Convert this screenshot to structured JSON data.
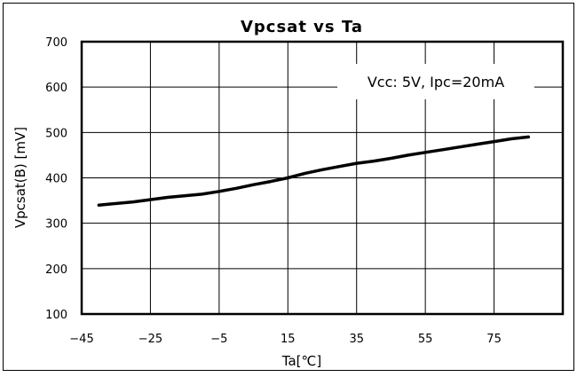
{
  "chart_data": {
    "type": "line",
    "title": "Vpcsat vs Ta",
    "xlabel": "Ta[℃]",
    "ylabel": "Vpcsat(B) [mV]",
    "xlim": [
      -45,
      95
    ],
    "ylim": [
      100,
      700
    ],
    "x_ticks": [
      -45,
      -25,
      -5,
      15,
      35,
      55,
      75
    ],
    "y_ticks": [
      100,
      200,
      300,
      400,
      500,
      600,
      700
    ],
    "grid": true,
    "annotation": "Vcc: 5V, Ipc=20mA",
    "series": [
      {
        "color": "#000000",
        "x": [
          -40,
          -30,
          -20,
          -10,
          -5,
          0,
          5,
          10,
          15,
          20,
          25,
          30,
          35,
          40,
          45,
          50,
          55,
          60,
          65,
          70,
          75,
          80,
          85
        ],
        "y": [
          340,
          347,
          357,
          364,
          370,
          377,
          385,
          392,
          400,
          410,
          418,
          425,
          432,
          437,
          443,
          450,
          456,
          462,
          468,
          474,
          480,
          486,
          490
        ]
      }
    ]
  }
}
